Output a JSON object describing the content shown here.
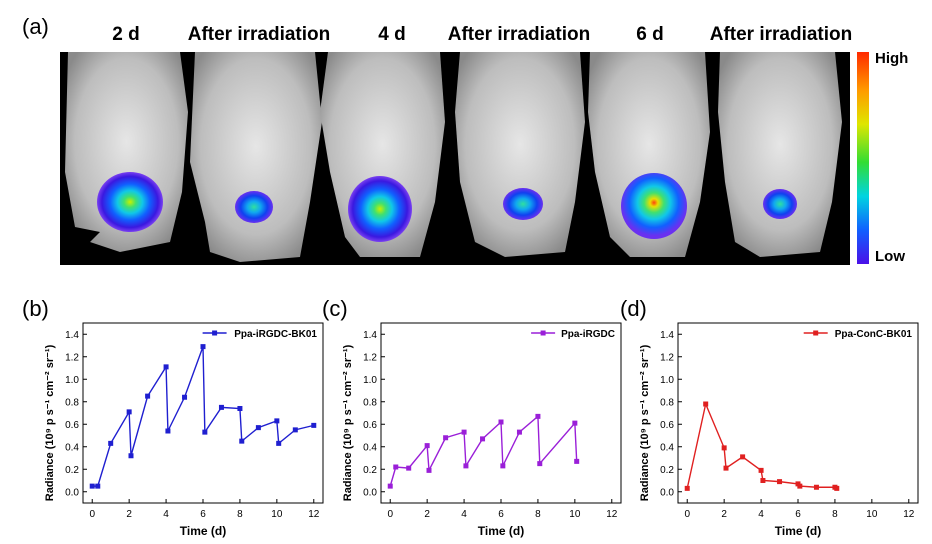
{
  "panel_labels": {
    "a": "(a)",
    "b": "(b)",
    "c": "(c)",
    "d": "(d)"
  },
  "image_labels": [
    "2 d",
    "After irradiation",
    "4 d",
    "After irradiation",
    "6 d",
    "After irradiation"
  ],
  "colorbar": {
    "high": "High",
    "low": "Low"
  },
  "chart_data": [
    {
      "type": "line",
      "panel": "(b)",
      "title": "",
      "xlabel": "Time (d)",
      "ylabel": "Radiance (10⁹ p s⁻¹ cm⁻² sr⁻¹)",
      "xlim": [
        -0.5,
        12.5
      ],
      "ylim": [
        -0.1,
        1.5
      ],
      "xticks": [
        0,
        2,
        4,
        6,
        8,
        10,
        12
      ],
      "yticks": [
        0.0,
        0.2,
        0.4,
        0.6,
        0.8,
        1.0,
        1.2,
        1.4
      ],
      "legend_position": "top-right",
      "series": [
        {
          "name": "Ppa-iRGDC-BK01",
          "color": "#1f1fd0",
          "x": [
            0,
            0.3,
            1,
            2,
            2.1,
            3,
            4,
            4.1,
            5,
            6,
            6.1,
            7,
            8,
            8.1,
            9,
            10,
            10.1,
            11,
            12
          ],
          "y": [
            0.05,
            0.05,
            0.43,
            0.71,
            0.32,
            0.85,
            1.11,
            0.54,
            0.84,
            1.29,
            0.53,
            0.75,
            0.74,
            0.45,
            0.57,
            0.63,
            0.43,
            0.55,
            0.59
          ]
        }
      ]
    },
    {
      "type": "line",
      "panel": "(c)",
      "title": "",
      "xlabel": "Time (d)",
      "ylabel": "Radiance (10⁹ p s⁻¹ cm⁻² sr⁻¹)",
      "xlim": [
        -0.5,
        12.5
      ],
      "ylim": [
        -0.1,
        1.5
      ],
      "xticks": [
        0,
        2,
        4,
        6,
        8,
        10,
        12
      ],
      "yticks": [
        0.0,
        0.2,
        0.4,
        0.6,
        0.8,
        1.0,
        1.2,
        1.4
      ],
      "legend_position": "top-right",
      "series": [
        {
          "name": "Ppa-iRGDC",
          "color": "#9a1fd8",
          "x": [
            0,
            0.3,
            1,
            2,
            2.1,
            3,
            4,
            4.1,
            5,
            6,
            6.1,
            7,
            8,
            8.1,
            10,
            10.1
          ],
          "y": [
            0.05,
            0.22,
            0.21,
            0.41,
            0.19,
            0.48,
            0.53,
            0.23,
            0.47,
            0.62,
            0.23,
            0.53,
            0.67,
            0.25,
            0.61,
            0.27
          ]
        }
      ]
    },
    {
      "type": "line",
      "panel": "(d)",
      "title": "",
      "xlabel": "Time (d)",
      "ylabel": "Radiance (10⁹ p s⁻¹ cm⁻² sr⁻¹)",
      "xlim": [
        -0.5,
        12.5
      ],
      "ylim": [
        -0.1,
        1.5
      ],
      "xticks": [
        0,
        2,
        4,
        6,
        8,
        10,
        12
      ],
      "yticks": [
        0.0,
        0.2,
        0.4,
        0.6,
        0.8,
        1.0,
        1.2,
        1.4
      ],
      "legend_position": "top-right",
      "series": [
        {
          "name": "Ppa-ConC-BK01",
          "color": "#e02020",
          "x": [
            0,
            1,
            2,
            2.1,
            3,
            4,
            4.1,
            5,
            6,
            6.1,
            7,
            8,
            8.1
          ],
          "y": [
            0.03,
            0.78,
            0.39,
            0.21,
            0.31,
            0.19,
            0.1,
            0.09,
            0.07,
            0.05,
            0.04,
            0.04,
            0.03
          ]
        }
      ]
    }
  ]
}
